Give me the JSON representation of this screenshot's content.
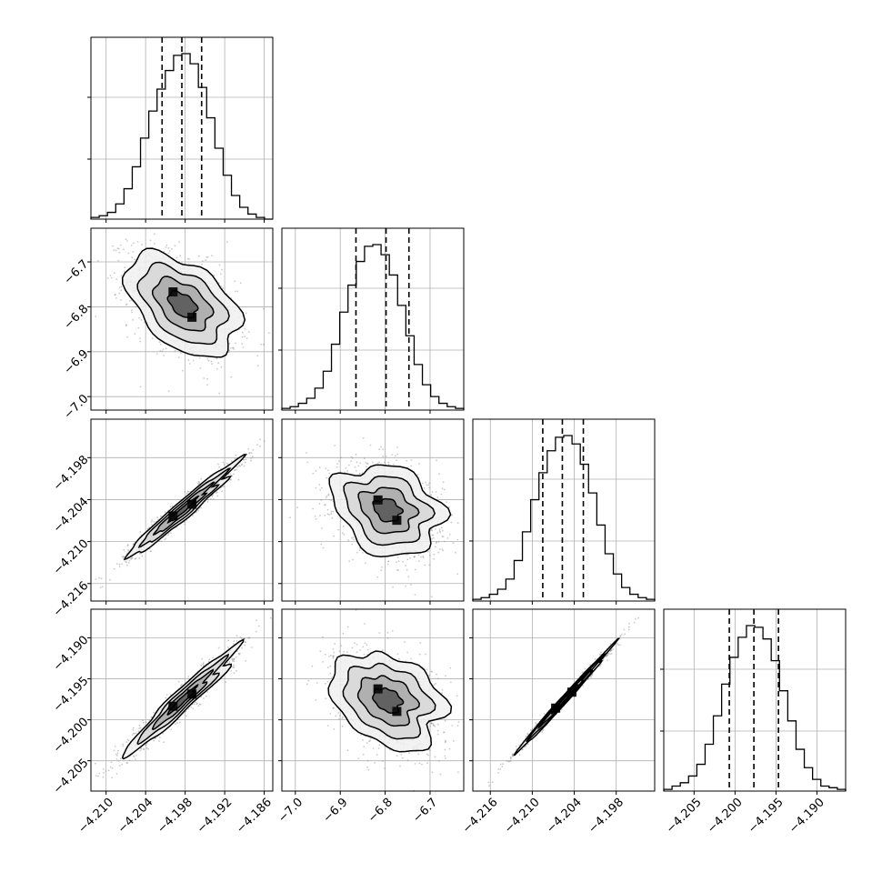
{
  "chart_data": {
    "type": "corner",
    "title": "",
    "parameters": [
      {
        "index": 0,
        "range": [
          -4.2123,
          -4.1847
        ],
        "ticks": [
          -4.21,
          -4.204,
          -4.198,
          -4.192,
          -4.186
        ],
        "tick_labels": [
          "−4.210",
          "−4.204",
          "−4.198",
          "−4.192",
          "−4.186"
        ],
        "mean": -4.1984,
        "std": 0.0041,
        "quantiles": [
          -4.2015,
          -4.1985,
          -4.1955
        ]
      },
      {
        "index": 1,
        "range": [
          -7.03,
          -6.625
        ],
        "ticks": [
          -7.0,
          -6.9,
          -6.8,
          -6.7
        ],
        "tick_labels": [
          "−7.0",
          "−6.9",
          "−6.8",
          "−6.7"
        ],
        "mean": -6.795,
        "std": 0.06,
        "quantiles": [
          -6.865,
          -6.798,
          -6.747
        ]
      },
      {
        "index": 2,
        "range": [
          -4.2185,
          -4.1925
        ],
        "ticks": [
          -4.216,
          -4.21,
          -4.204,
          -4.198
        ],
        "tick_labels": [
          "−4.216",
          "−4.210",
          "−4.204",
          "−4.198"
        ],
        "mean": -4.2055,
        "std": 0.0033,
        "quantiles": [
          -4.2085,
          -4.2057,
          -4.2027
        ]
      },
      {
        "index": 3,
        "range": [
          -4.2087,
          -4.1865
        ],
        "ticks": [
          -4.205,
          -4.2,
          -4.195,
          -4.19
        ],
        "tick_labels": [
          "−4.205",
          "−4.200",
          "−4.195",
          "−4.190"
        ],
        "mean": -4.1976,
        "std": 0.0031,
        "quantiles": [
          -4.2007,
          -4.1977,
          -4.1947
        ]
      }
    ],
    "histograms": [
      {
        "param": 0,
        "counts": [
          1,
          2,
          4,
          9,
          18,
          31,
          48,
          64,
          77,
          88,
          97,
          98,
          92,
          78,
          60,
          42,
          26,
          14,
          7,
          3,
          1,
          0
        ]
      },
      {
        "param": 1,
        "counts": [
          1,
          2,
          4,
          7,
          13,
          23,
          39,
          58,
          74,
          88,
          97,
          98,
          92,
          80,
          62,
          44,
          27,
          15,
          8,
          4,
          2,
          1
        ]
      },
      {
        "param": 2,
        "counts": [
          1,
          2,
          4,
          7,
          13,
          24,
          41,
          60,
          76,
          89,
          97,
          98,
          93,
          81,
          64,
          45,
          28,
          16,
          8,
          4,
          2,
          1
        ]
      },
      {
        "param": 3,
        "counts": [
          1,
          3,
          5,
          9,
          16,
          28,
          45,
          64,
          80,
          92,
          99,
          98,
          91,
          78,
          60,
          42,
          25,
          14,
          7,
          3,
          2,
          1
        ]
      }
    ],
    "correlations": [
      {
        "pair": [
          0,
          1
        ],
        "rho": -0.45
      },
      {
        "pair": [
          0,
          2
        ],
        "rho": 0.97
      },
      {
        "pair": [
          0,
          3
        ],
        "rho": 0.96
      },
      {
        "pair": [
          1,
          2
        ],
        "rho": -0.3
      },
      {
        "pair": [
          1,
          3
        ],
        "rho": -0.32
      },
      {
        "pair": [
          2,
          3
        ],
        "rho": 0.995
      }
    ],
    "contour_levels_sigma": [
      0.5,
      1.0,
      1.5,
      2.0
    ],
    "grid": true,
    "xlabel": "",
    "ylabel": "",
    "colors": {
      "hist": "#000000",
      "contour": "#000000",
      "points": "#8a8a8a",
      "grid": "#b0b0b0"
    }
  }
}
